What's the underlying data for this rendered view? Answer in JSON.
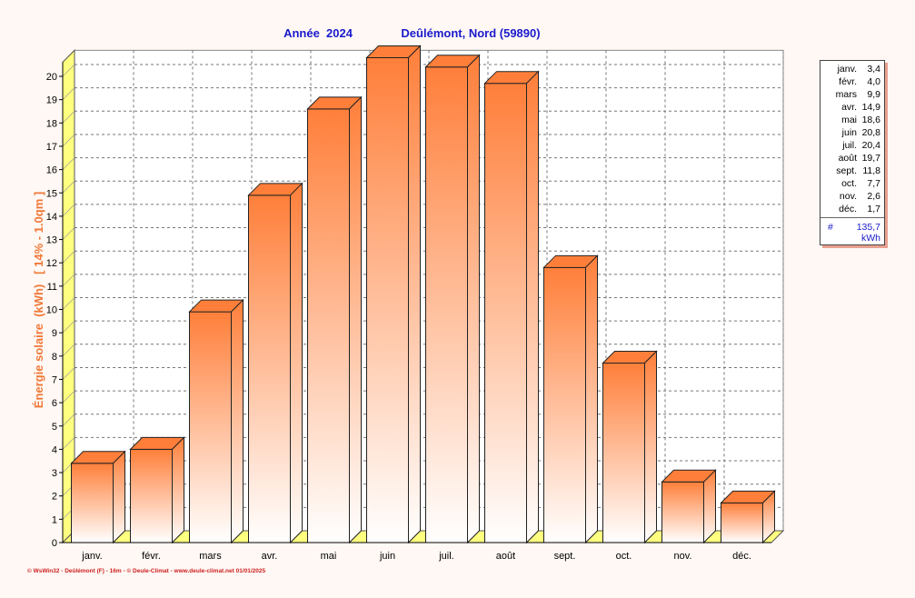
{
  "header": {
    "year_label": "Année  2024",
    "location": "Deûlémont, Nord (59890)"
  },
  "colors": {
    "bar_top": "#ff7f3a",
    "bar_bottom": "#ffffff",
    "floor": "#ffff80",
    "title": "#1a1acc",
    "axis_label": "#f07838",
    "footer": "#cc2020"
  },
  "chart_data": {
    "type": "bar",
    "title": "",
    "xlabel": "",
    "ylabel": "Énergie solaire  (kWh)   [ 14% - 1.0qm ]",
    "categories": [
      "janv.",
      "févr.",
      "mars",
      "avr.",
      "mai",
      "juin",
      "juil.",
      "août",
      "sept.",
      "oct.",
      "nov.",
      "déc."
    ],
    "values": [
      3.4,
      4.0,
      9.9,
      14.9,
      18.6,
      20.8,
      20.4,
      19.7,
      11.8,
      7.7,
      2.6,
      1.7
    ],
    "ylim": [
      0,
      21
    ],
    "yticks": [
      0,
      1,
      2,
      3,
      4,
      5,
      6,
      7,
      8,
      9,
      10,
      11,
      12,
      13,
      14,
      15,
      16,
      17,
      18,
      19,
      20
    ],
    "grid": true,
    "legend": "right"
  },
  "legend": {
    "rows": [
      {
        "month": "janv.",
        "value": "3,4"
      },
      {
        "month": "févr.",
        "value": "4,0"
      },
      {
        "month": "mars",
        "value": "9,9"
      },
      {
        "month": "avr.",
        "value": "14,9"
      },
      {
        "month": "mai",
        "value": "18,6"
      },
      {
        "month": "juin",
        "value": "20,8"
      },
      {
        "month": "juil.",
        "value": "20,4"
      },
      {
        "month": "août",
        "value": "19,7"
      },
      {
        "month": "sept.",
        "value": "11,8"
      },
      {
        "month": "oct.",
        "value": "7,7"
      },
      {
        "month": "nov.",
        "value": "2,6"
      },
      {
        "month": "déc.",
        "value": "1,7"
      }
    ],
    "total_symbol": "#",
    "total_value": "135,7",
    "total_unit": "kWh"
  },
  "footer": {
    "credit": "© WsWin32 - Deûlémont (F) - 16m - © Deule-Climat - www.deule-climat.net  01/01/2025"
  }
}
